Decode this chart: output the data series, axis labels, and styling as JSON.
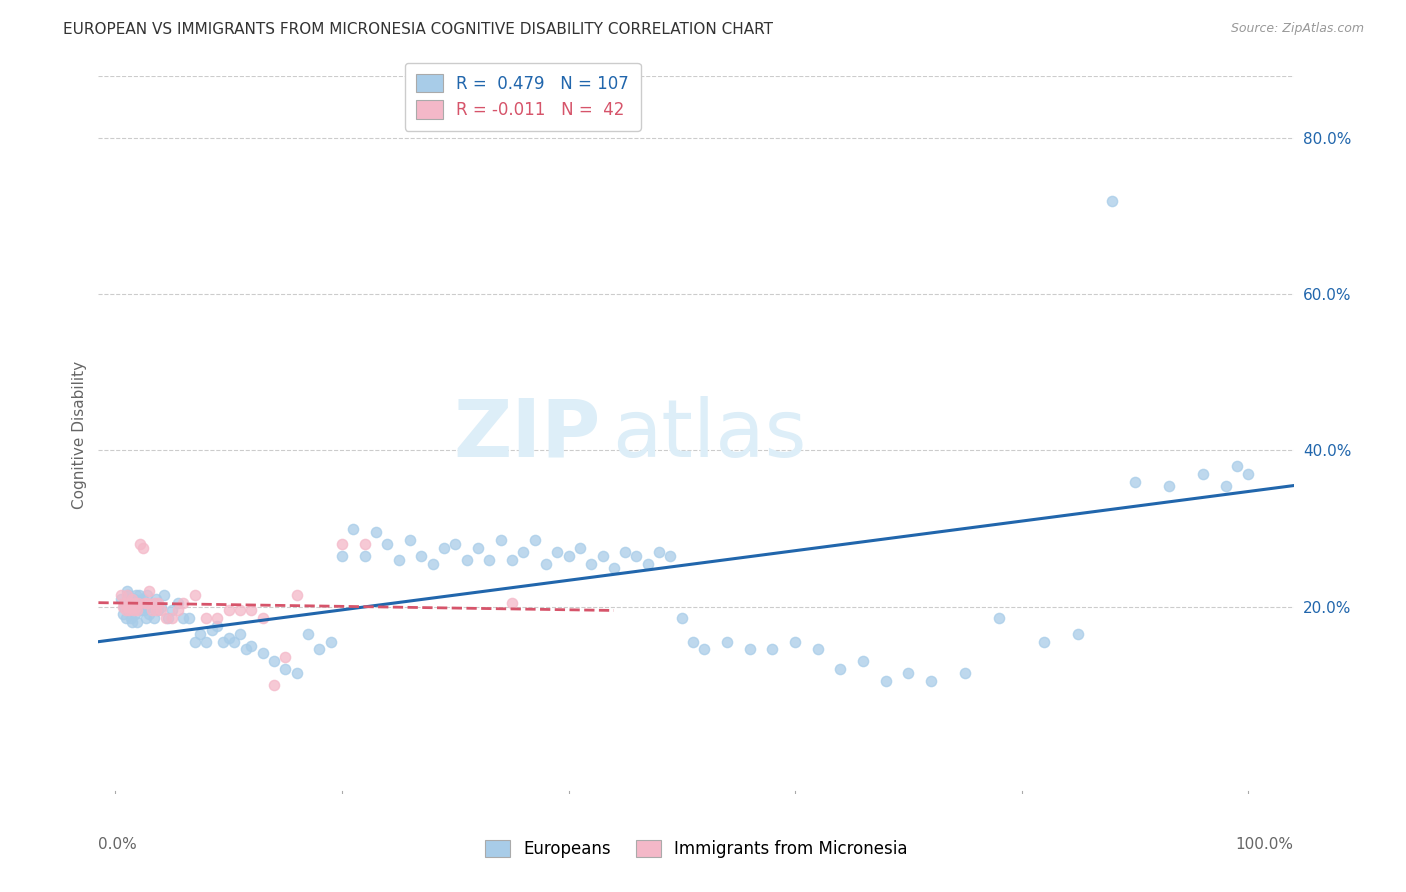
{
  "title": "EUROPEAN VS IMMIGRANTS FROM MICRONESIA COGNITIVE DISABILITY CORRELATION CHART",
  "source": "Source: ZipAtlas.com",
  "ylabel": "Cognitive Disability",
  "ytick_labels": [
    "20.0%",
    "40.0%",
    "60.0%",
    "80.0%"
  ],
  "ytick_values": [
    0.2,
    0.4,
    0.6,
    0.8
  ],
  "xlim": [
    -0.015,
    1.04
  ],
  "ylim": [
    -0.04,
    0.88
  ],
  "blue_color": "#a8cce8",
  "pink_color": "#f4b8c8",
  "blue_line_color": "#2166ac",
  "pink_line_color": "#d6546a",
  "watermark_color": "#ddeef8",
  "blue_scatter_x": [
    0.005,
    0.007,
    0.008,
    0.009,
    0.01,
    0.011,
    0.012,
    0.013,
    0.014,
    0.015,
    0.016,
    0.017,
    0.018,
    0.019,
    0.02,
    0.021,
    0.022,
    0.023,
    0.024,
    0.025,
    0.026,
    0.027,
    0.028,
    0.03,
    0.032,
    0.034,
    0.036,
    0.038,
    0.04,
    0.043,
    0.046,
    0.05,
    0.055,
    0.06,
    0.065,
    0.07,
    0.075,
    0.08,
    0.085,
    0.09,
    0.095,
    0.1,
    0.105,
    0.11,
    0.115,
    0.12,
    0.13,
    0.14,
    0.15,
    0.16,
    0.17,
    0.18,
    0.19,
    0.2,
    0.21,
    0.22,
    0.23,
    0.24,
    0.25,
    0.26,
    0.27,
    0.28,
    0.29,
    0.3,
    0.31,
    0.32,
    0.33,
    0.34,
    0.35,
    0.36,
    0.37,
    0.38,
    0.39,
    0.4,
    0.41,
    0.42,
    0.43,
    0.44,
    0.45,
    0.46,
    0.47,
    0.48,
    0.49,
    0.5,
    0.51,
    0.52,
    0.54,
    0.56,
    0.58,
    0.6,
    0.62,
    0.64,
    0.66,
    0.68,
    0.7,
    0.72,
    0.75,
    0.78,
    0.82,
    0.85,
    0.88,
    0.9,
    0.93,
    0.96,
    0.98,
    0.99,
    1.0
  ],
  "blue_scatter_y": [
    0.21,
    0.19,
    0.2,
    0.185,
    0.22,
    0.215,
    0.195,
    0.2,
    0.185,
    0.18,
    0.21,
    0.19,
    0.215,
    0.18,
    0.2,
    0.215,
    0.205,
    0.195,
    0.21,
    0.195,
    0.2,
    0.185,
    0.215,
    0.19,
    0.2,
    0.185,
    0.21,
    0.195,
    0.2,
    0.215,
    0.185,
    0.195,
    0.205,
    0.185,
    0.185,
    0.155,
    0.165,
    0.155,
    0.17,
    0.175,
    0.155,
    0.16,
    0.155,
    0.165,
    0.145,
    0.15,
    0.14,
    0.13,
    0.12,
    0.115,
    0.165,
    0.145,
    0.155,
    0.265,
    0.3,
    0.265,
    0.295,
    0.28,
    0.26,
    0.285,
    0.265,
    0.255,
    0.275,
    0.28,
    0.26,
    0.275,
    0.26,
    0.285,
    0.26,
    0.27,
    0.285,
    0.255,
    0.27,
    0.265,
    0.275,
    0.255,
    0.265,
    0.25,
    0.27,
    0.265,
    0.255,
    0.27,
    0.265,
    0.185,
    0.155,
    0.145,
    0.155,
    0.145,
    0.145,
    0.155,
    0.145,
    0.12,
    0.13,
    0.105,
    0.115,
    0.105,
    0.115,
    0.185,
    0.155,
    0.165,
    0.72,
    0.36,
    0.355,
    0.37,
    0.355,
    0.38,
    0.37
  ],
  "pink_scatter_x": [
    0.005,
    0.007,
    0.008,
    0.009,
    0.01,
    0.011,
    0.012,
    0.013,
    0.014,
    0.015,
    0.016,
    0.017,
    0.018,
    0.019,
    0.02,
    0.022,
    0.024,
    0.026,
    0.028,
    0.03,
    0.032,
    0.034,
    0.036,
    0.038,
    0.04,
    0.045,
    0.05,
    0.055,
    0.06,
    0.07,
    0.08,
    0.09,
    0.1,
    0.11,
    0.12,
    0.13,
    0.14,
    0.15,
    0.16,
    0.2,
    0.22,
    0.35
  ],
  "pink_scatter_y": [
    0.215,
    0.2,
    0.205,
    0.195,
    0.215,
    0.2,
    0.195,
    0.205,
    0.2,
    0.21,
    0.195,
    0.205,
    0.2,
    0.195,
    0.205,
    0.28,
    0.275,
    0.205,
    0.205,
    0.22,
    0.195,
    0.205,
    0.195,
    0.205,
    0.195,
    0.185,
    0.185,
    0.195,
    0.205,
    0.215,
    0.185,
    0.185,
    0.195,
    0.195,
    0.195,
    0.185,
    0.1,
    0.135,
    0.215,
    0.28,
    0.28,
    0.205
  ],
  "blue_trend_x": [
    -0.015,
    1.04
  ],
  "blue_trend_y_start": 0.155,
  "blue_trend_y_end": 0.355,
  "pink_trend_x": [
    -0.015,
    0.44
  ],
  "pink_trend_y_start": 0.205,
  "pink_trend_y_end": 0.195
}
